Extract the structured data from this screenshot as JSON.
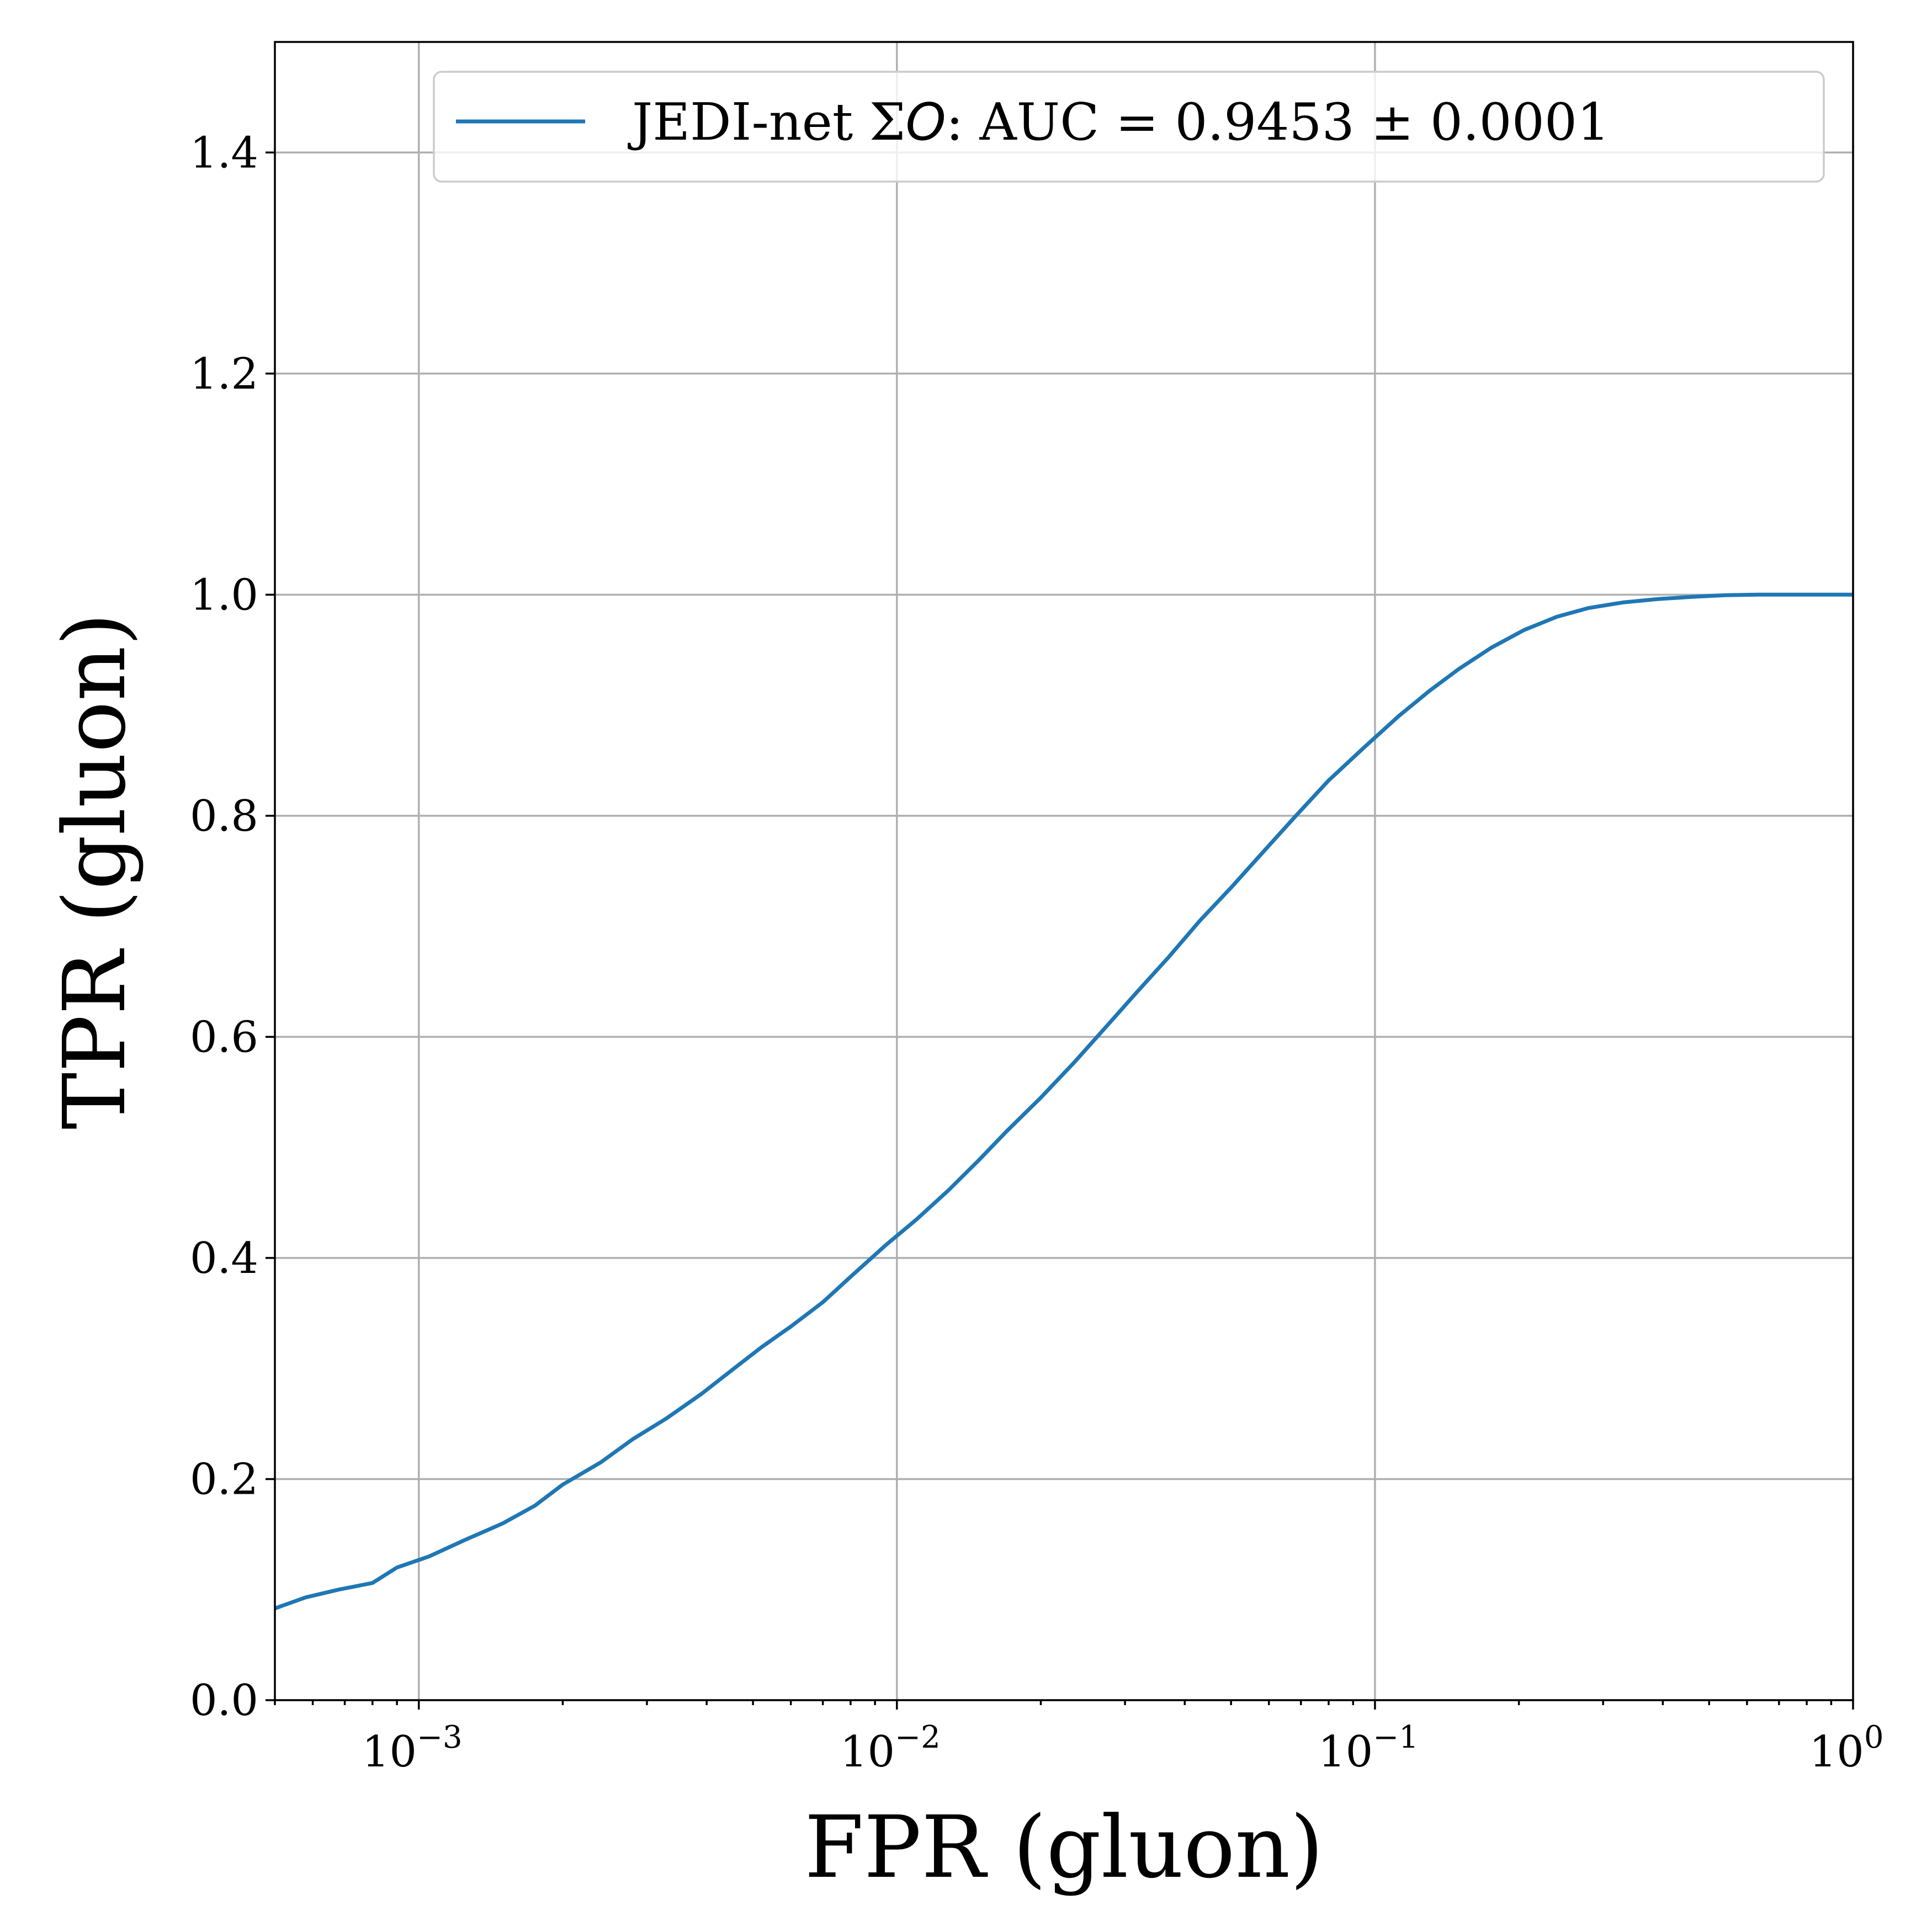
{
  "chart_data": {
    "type": "line",
    "xlabel": "FPR (gluon)",
    "ylabel": "TPR (gluon)",
    "xscale": "log",
    "xlim": [
      0.0005,
      1
    ],
    "ylim": [
      0,
      1.5
    ],
    "grid": true,
    "legend_position": "top-right",
    "x_ticks": [
      {
        "value": 0.001,
        "base": "10",
        "exp": "−3"
      },
      {
        "value": 0.01,
        "base": "10",
        "exp": "−2"
      },
      {
        "value": 0.1,
        "base": "10",
        "exp": "−1"
      },
      {
        "value": 1,
        "base": "10",
        "exp": "0"
      }
    ],
    "y_ticks": [
      {
        "value": 0.0,
        "label": "0.0"
      },
      {
        "value": 0.2,
        "label": "0.2"
      },
      {
        "value": 0.4,
        "label": "0.4"
      },
      {
        "value": 0.6,
        "label": "0.6"
      },
      {
        "value": 0.8,
        "label": "0.8"
      },
      {
        "value": 1.0,
        "label": "1.0"
      },
      {
        "value": 1.2,
        "label": "1.2"
      },
      {
        "value": 1.4,
        "label": "1.4"
      }
    ],
    "series": [
      {
        "name": "JEDI-net ΣO: AUC = 0.9453 ± 0.0001",
        "legend_prefix": "JEDI-net Σ",
        "legend_italic": "O",
        "legend_suffix": ": AUC = 0.9453 ± 0.0001",
        "color": "#1f77b4",
        "x": [
          0.0005,
          0.00058,
          0.00068,
          0.0008,
          0.0009,
          0.00105,
          0.00125,
          0.0015,
          0.00175,
          0.002,
          0.0024,
          0.0028,
          0.0033,
          0.0039,
          0.0045,
          0.0052,
          0.006,
          0.007,
          0.008,
          0.0095,
          0.011,
          0.0128,
          0.0148,
          0.017,
          0.02,
          0.0235,
          0.0275,
          0.032,
          0.037,
          0.043,
          0.05,
          0.058,
          0.068,
          0.08,
          0.095,
          0.112,
          0.13,
          0.15,
          0.175,
          0.205,
          0.24,
          0.28,
          0.33,
          0.39,
          0.46,
          0.54,
          0.63,
          0.74,
          0.86,
          1.0
        ],
        "y": [
          0.083,
          0.093,
          0.1,
          0.106,
          0.12,
          0.13,
          0.145,
          0.16,
          0.176,
          0.195,
          0.215,
          0.236,
          0.255,
          0.277,
          0.298,
          0.319,
          0.338,
          0.36,
          0.383,
          0.412,
          0.435,
          0.461,
          0.488,
          0.515,
          0.545,
          0.577,
          0.61,
          0.642,
          0.672,
          0.705,
          0.735,
          0.766,
          0.799,
          0.832,
          0.862,
          0.89,
          0.913,
          0.933,
          0.952,
          0.968,
          0.98,
          0.988,
          0.993,
          0.996,
          0.998,
          0.9995,
          1.0,
          1.0,
          1.0,
          1.0
        ]
      }
    ]
  }
}
